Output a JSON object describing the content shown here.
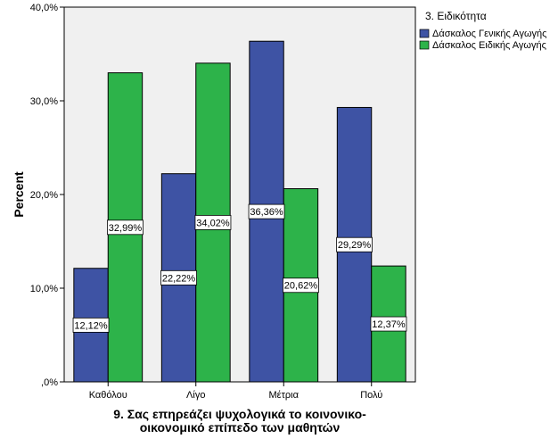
{
  "chart_data": {
    "type": "bar",
    "title": "",
    "categories": [
      "Καθόλου",
      "Λίγο",
      "Μέτρια",
      "Πολύ"
    ],
    "series": [
      {
        "name": "Δάσκαλος Γενικής Αγωγής",
        "color": "#3e53a4",
        "values": [
          12.12,
          22.22,
          36.36,
          29.29
        ],
        "labels": [
          "12,12%",
          "22,22%",
          "36,36%",
          "29,29%"
        ]
      },
      {
        "name": "Δάσκαλος Ειδικής Αγωγής",
        "color": "#2db34a",
        "values": [
          32.99,
          34.02,
          20.62,
          12.37
        ],
        "labels": [
          "32,99%",
          "34,02%",
          "20,62%",
          "12,37%"
        ]
      }
    ],
    "xlabel_lines": [
      "9. Σας επηρεάζει ψυχολογικά το κοινονικο-",
      "οικονομικό επίπεδο των μαθητών"
    ],
    "ylabel": "Percent",
    "ylim": [
      0,
      40
    ],
    "yticks": [
      0,
      10,
      20,
      30,
      40
    ],
    "ytick_labels": [
      ",0%",
      "10,0%",
      "20,0%",
      "30,0%",
      "40,0%"
    ],
    "legend_title": "3. Ειδικότητα",
    "legend_position": "top-right",
    "plot_background": "#f0f0f0"
  }
}
